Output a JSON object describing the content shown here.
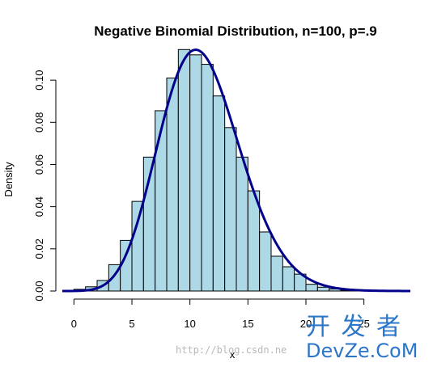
{
  "chart_data": {
    "type": "bar",
    "title": "Negative Binomial Distribution, n=100, p=.9",
    "xlabel": "x",
    "ylabel": "Density",
    "xlim": [
      -1,
      29
    ],
    "ylim": [
      0,
      0.115
    ],
    "x_ticks": [
      0,
      5,
      10,
      15,
      20,
      25
    ],
    "y_ticks": [
      0.0,
      0.02,
      0.04,
      0.06,
      0.08,
      0.1
    ],
    "y_tick_labels": [
      "0.00",
      "0.02",
      "0.04",
      "0.06",
      "0.08",
      "0.10"
    ],
    "x_tick_labels": [
      "0",
      "5",
      "10",
      "15",
      "20",
      "25"
    ],
    "bin_width": 1,
    "bins": [
      {
        "x0": 0,
        "x1": 1,
        "density": 0.0008
      },
      {
        "x0": 1,
        "x1": 2,
        "density": 0.002
      },
      {
        "x0": 2,
        "x1": 3,
        "density": 0.005
      },
      {
        "x0": 3,
        "x1": 4,
        "density": 0.0125
      },
      {
        "x0": 4,
        "x1": 5,
        "density": 0.024
      },
      {
        "x0": 5,
        "x1": 6,
        "density": 0.0425
      },
      {
        "x0": 6,
        "x1": 7,
        "density": 0.0635
      },
      {
        "x0": 7,
        "x1": 8,
        "density": 0.0855
      },
      {
        "x0": 8,
        "x1": 9,
        "density": 0.101
      },
      {
        "x0": 9,
        "x1": 10,
        "density": 0.1145
      },
      {
        "x0": 10,
        "x1": 11,
        "density": 0.112
      },
      {
        "x0": 11,
        "x1": 12,
        "density": 0.1075
      },
      {
        "x0": 12,
        "x1": 13,
        "density": 0.0925
      },
      {
        "x0": 13,
        "x1": 14,
        "density": 0.0775
      },
      {
        "x0": 14,
        "x1": 15,
        "density": 0.0635
      },
      {
        "x0": 15,
        "x1": 16,
        "density": 0.0475
      },
      {
        "x0": 16,
        "x1": 17,
        "density": 0.028
      },
      {
        "x0": 17,
        "x1": 18,
        "density": 0.0165
      },
      {
        "x0": 18,
        "x1": 19,
        "density": 0.0115
      },
      {
        "x0": 19,
        "x1": 20,
        "density": 0.008
      },
      {
        "x0": 20,
        "x1": 21,
        "density": 0.0032
      },
      {
        "x0": 21,
        "x1": 22,
        "density": 0.0018
      },
      {
        "x0": 22,
        "x1": 23,
        "density": 0.001
      },
      {
        "x0": 23,
        "x1": 24,
        "density": 0.0004
      },
      {
        "x0": 24,
        "x1": 25,
        "density": 0.0001
      }
    ],
    "density_curve": {
      "distribution": "negative binomial",
      "size": 100,
      "prob": 0.9,
      "x_range": [
        -1,
        29
      ]
    },
    "grid": false,
    "legend": "none"
  },
  "colors": {
    "bar_fill": "#add8e6",
    "bar_stroke": "#000000",
    "curve": "#00008b",
    "axis": "#000000",
    "watermark": "#b8b8b8",
    "logo": "#2b76c8"
  },
  "watermark": {
    "url_text": "http://blog.csdn.ne",
    "logo_top": "开 发 者",
    "logo_bottom": "DevZe.CoM"
  }
}
